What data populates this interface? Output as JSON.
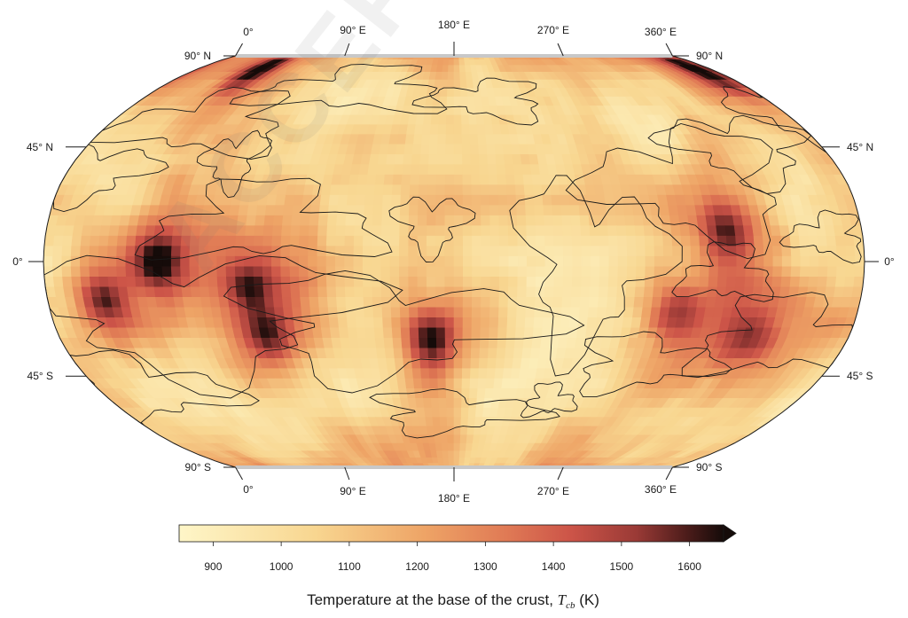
{
  "map": {
    "projection": "Robinson",
    "top_longitude_labels": [
      "0°",
      "90° E",
      "180° E",
      "270° E",
      "360° E"
    ],
    "bottom_longitude_labels": [
      "0°",
      "90° E",
      "180° E",
      "270° E",
      "360° E"
    ],
    "left_latitude_labels": [
      "90° N",
      "45° N",
      "0°",
      "45° S",
      "90° S"
    ],
    "right_latitude_labels": [
      "90° N",
      "45° N",
      "0°",
      "45° S",
      "90° S"
    ],
    "hotspots": [
      {
        "lon": 50,
        "lat": 0,
        "value": 1620
      },
      {
        "lon": 45,
        "lat": 80,
        "value": 1650
      },
      {
        "lon": 350,
        "lat": 80,
        "value": 1600
      },
      {
        "lon": 25,
        "lat": -15,
        "value": 1450
      },
      {
        "lon": 95,
        "lat": -28,
        "value": 1500
      },
      {
        "lon": 90,
        "lat": -10,
        "value": 1450
      },
      {
        "lon": 170,
        "lat": -30,
        "value": 1600
      },
      {
        "lon": 300,
        "lat": 12,
        "value": 1450
      },
      {
        "lon": 280,
        "lat": -20,
        "value": 1350
      },
      {
        "lon": 315,
        "lat": -30,
        "value": 1300
      }
    ],
    "colors": {
      "low": "#fef4c4",
      "mid": "#f1ae66",
      "high": "#d9564a",
      "max": "#1a0d0a",
      "contour": "#1a1a1a",
      "pole_band": "#c8c8c8"
    }
  },
  "colorbar": {
    "ticks": [
      "900",
      "1000",
      "1100",
      "1200",
      "1300",
      "1400",
      "1500",
      "1600"
    ],
    "tick_values": [
      900,
      1000,
      1100,
      1200,
      1300,
      1400,
      1500,
      1600
    ],
    "range": [
      850,
      1650
    ],
    "extend": "max",
    "label_main": "Temperature at the base of the crust, ",
    "label_symbol": "T",
    "label_subscript": "cb",
    "label_unit": " (K)"
  },
  "watermark": "ACCEPTED"
}
